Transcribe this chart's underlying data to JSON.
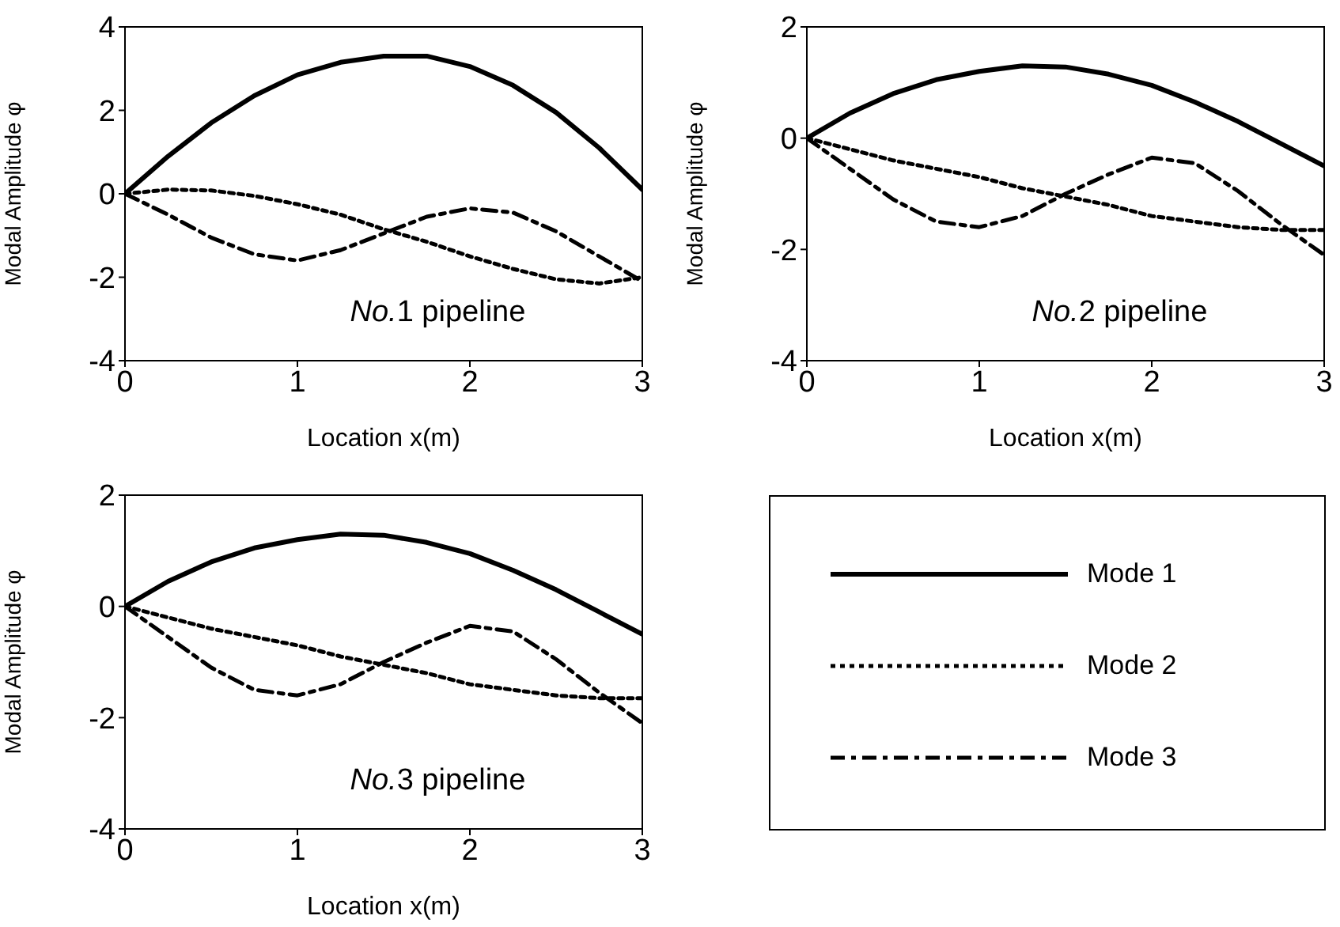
{
  "chart_data": [
    {
      "type": "line",
      "xlabel": "Location x(m)",
      "ylabel": "Modal Amplitude φ",
      "annotations": [
        "No.1 pipeline"
      ],
      "x": [
        0,
        0.25,
        0.5,
        0.75,
        1,
        1.25,
        1.5,
        1.75,
        2,
        2.25,
        2.5,
        2.75,
        3
      ],
      "xlim": [
        0,
        3
      ],
      "xticks": [
        0,
        1,
        2,
        3
      ],
      "ylim": [
        -4,
        4
      ],
      "yticks": [
        -4,
        -2,
        0,
        2,
        4
      ],
      "marker": "none",
      "series": [
        {
          "color": "#000000",
          "line_style": "solid",
          "values": [
            0,
            0.9,
            1.7,
            2.35,
            2.85,
            3.15,
            3.3,
            3.3,
            3.05,
            2.6,
            1.95,
            1.1,
            0.1
          ]
        },
        {
          "color": "#000000",
          "line_style": "dotted",
          "values": [
            0,
            0.1,
            0.08,
            -0.05,
            -0.25,
            -0.5,
            -0.85,
            -1.15,
            -1.5,
            -1.8,
            -2.05,
            -2.15,
            -2
          ]
        },
        {
          "color": "#000000",
          "line_style": "dashdot",
          "values": [
            0,
            -0.5,
            -1.05,
            -1.45,
            -1.6,
            -1.35,
            -0.95,
            -0.55,
            -0.35,
            -0.45,
            -0.9,
            -1.5,
            -2.1
          ]
        }
      ]
    },
    {
      "type": "line",
      "xlabel": "Location x(m)",
      "ylabel": "Modal Amplitude φ",
      "annotations": [
        "No.2 pipeline"
      ],
      "x": [
        0,
        0.25,
        0.5,
        0.75,
        1,
        1.25,
        1.5,
        1.75,
        2,
        2.25,
        2.5,
        2.75,
        3
      ],
      "xlim": [
        0,
        3
      ],
      "xticks": [
        0,
        1,
        2,
        3
      ],
      "ylim": [
        -4,
        2
      ],
      "yticks": [
        -4,
        -2,
        0,
        2
      ],
      "grid": false,
      "marker": "none",
      "series": [
        {
          "color": "#000000",
          "line_style": "solid",
          "values": [
            0,
            0.45,
            0.8,
            1.05,
            1.2,
            1.3,
            1.28,
            1.15,
            0.95,
            0.65,
            0.3,
            -0.1,
            -0.5
          ]
        },
        {
          "color": "#000000",
          "line_style": "dotted",
          "values": [
            0,
            -0.2,
            -0.4,
            -0.55,
            -0.7,
            -0.9,
            -1.05,
            -1.2,
            -1.4,
            -1.5,
            -1.6,
            -1.65,
            -1.65
          ]
        },
        {
          "color": "#000000",
          "line_style": "dashdot",
          "values": [
            0,
            -0.55,
            -1.1,
            -1.5,
            -1.6,
            -1.4,
            -1,
            -0.65,
            -0.35,
            -0.45,
            -0.95,
            -1.55,
            -2.1
          ]
        }
      ]
    },
    {
      "type": "line",
      "xlabel": "Location x(m)",
      "ylabel": "Modal Amplitude φ",
      "annotations": [
        "No.3 pipeline"
      ],
      "x": [
        0,
        0.25,
        0.5,
        0.75,
        1,
        1.25,
        1.5,
        1.75,
        2,
        2.25,
        2.5,
        2.75,
        3
      ],
      "xlim": [
        0,
        3
      ],
      "xticks": [
        0,
        1,
        2,
        3
      ],
      "ylim": [
        -4,
        2
      ],
      "yticks": [
        -4,
        -2,
        0,
        2
      ],
      "grid": false,
      "marker": "none",
      "legend": "right",
      "series": [
        {
          "name": "Mode 1",
          "color": "#000000",
          "line_style": "solid",
          "values": [
            0,
            0.45,
            0.8,
            1.05,
            1.2,
            1.3,
            1.28,
            1.15,
            0.95,
            0.65,
            0.3,
            -0.1,
            -0.5
          ]
        },
        {
          "name": "Mode 2",
          "color": "#000000",
          "line_style": "dotted",
          "values": [
            0,
            -0.2,
            -0.4,
            -0.55,
            -0.7,
            -0.9,
            -1.05,
            -1.2,
            -1.4,
            -1.5,
            -1.6,
            -1.65,
            -1.65
          ]
        },
        {
          "name": "Mode 3",
          "color": "#000000",
          "line_style": "dashdot",
          "values": [
            0,
            -0.55,
            -1.1,
            -1.5,
            -1.6,
            -1.4,
            -1,
            -0.65,
            -0.35,
            -0.45,
            -0.95,
            -1.55,
            -2.1
          ]
        }
      ]
    }
  ]
}
